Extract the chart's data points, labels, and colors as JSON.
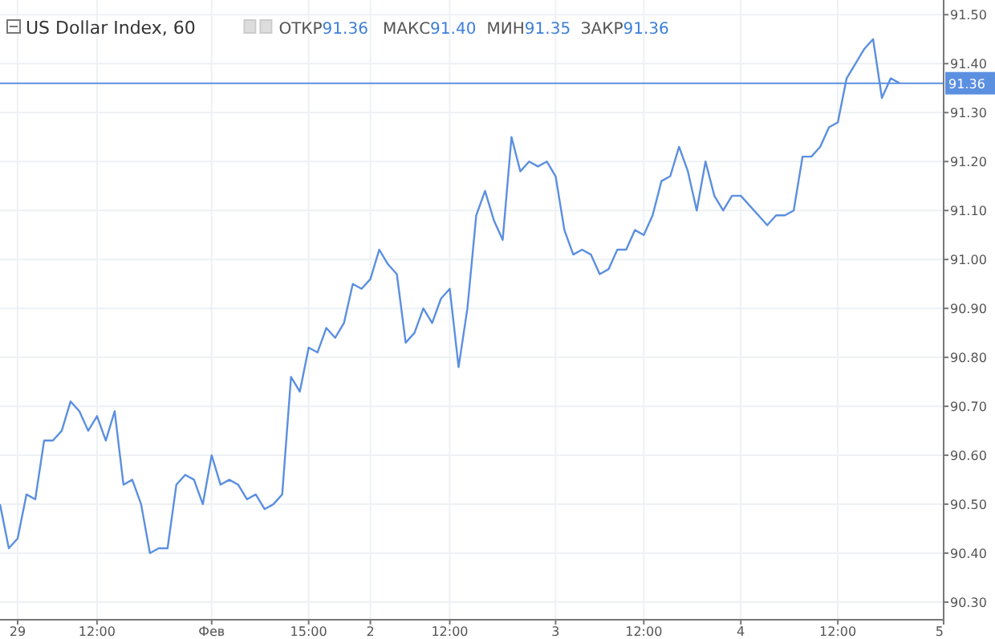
{
  "chart_data": {
    "type": "line",
    "title": "US Dollar Index, 60",
    "annotations": [
      "ОТКР91.36",
      "МАКС91.40",
      "МИН91.35",
      "ЗАКР91.36"
    ],
    "categories": [
      null,
      null,
      "29",
      null,
      null,
      null,
      null,
      null,
      null,
      null,
      null,
      "12:00",
      null,
      null,
      null,
      null,
      null,
      null,
      null,
      null,
      null,
      null,
      null,
      null,
      "Фев",
      null,
      null,
      null,
      null,
      null,
      null,
      null,
      null,
      null,
      null,
      "15:00",
      null,
      null,
      null,
      null,
      null,
      null,
      "2",
      null,
      null,
      null,
      null,
      null,
      null,
      null,
      null,
      "12:00",
      null,
      null,
      null,
      null,
      null,
      null,
      null,
      null,
      null,
      null,
      null,
      "3",
      null,
      null,
      null,
      null,
      null,
      null,
      null,
      null,
      null,
      "12:00",
      null,
      null,
      null,
      null,
      null,
      null,
      null,
      null,
      null,
      null,
      "4",
      null,
      null,
      null,
      null,
      null,
      null,
      null,
      null,
      null,
      null,
      "12:00",
      null,
      null,
      null,
      null,
      null,
      null,
      null,
      null,
      null,
      null,
      null,
      "5"
    ],
    "series": [
      {
        "color": "#5b8fe0",
        "values": [
          90.5,
          90.41,
          90.43,
          90.52,
          90.51,
          90.63,
          90.63,
          90.65,
          90.71,
          90.69,
          90.65,
          90.68,
          90.63,
          90.69,
          90.54,
          90.55,
          90.5,
          90.4,
          90.41,
          90.41,
          90.54,
          90.56,
          90.55,
          90.5,
          90.6,
          90.54,
          90.55,
          90.54,
          90.51,
          90.52,
          90.49,
          90.5,
          90.52,
          90.76,
          90.73,
          90.82,
          90.81,
          90.86,
          90.84,
          90.87,
          90.95,
          90.94,
          90.96,
          91.02,
          90.99,
          90.97,
          90.83,
          90.85,
          90.9,
          90.87,
          90.92,
          90.94,
          90.78,
          90.9,
          91.09,
          91.14,
          91.08,
          91.04,
          91.25,
          91.18,
          91.2,
          91.19,
          91.2,
          91.17,
          91.06,
          91.01,
          91.02,
          91.01,
          90.97,
          90.98,
          91.02,
          91.02,
          91.06,
          91.05,
          91.09,
          91.16,
          91.17,
          91.23,
          91.18,
          91.1,
          91.2,
          91.13,
          91.1,
          91.13,
          91.13,
          91.11,
          91.09,
          91.07,
          91.09,
          91.09,
          91.1,
          91.21,
          91.21,
          91.23,
          91.27,
          91.28,
          91.37,
          91.4,
          91.43,
          91.45,
          91.33,
          91.37,
          91.36,
          null,
          null,
          null,
          null,
          null
        ]
      }
    ],
    "ylim": [
      90.264,
      91.53
    ],
    "yticks": [
      {
        "value": 90.3,
        "label": "90.30"
      },
      {
        "value": 90.4,
        "label": "90.40"
      },
      {
        "value": 90.5,
        "label": "90.50"
      },
      {
        "value": 90.6,
        "label": "90.60"
      },
      {
        "value": 90.7,
        "label": "90.70"
      },
      {
        "value": 90.8,
        "label": "90.80"
      },
      {
        "value": 90.9,
        "label": "90.90"
      },
      {
        "value": 91.0,
        "label": "91.00"
      },
      {
        "value": 91.1,
        "label": "91.10"
      },
      {
        "value": 91.2,
        "label": "91.20"
      },
      {
        "value": 91.3,
        "label": "91.30"
      },
      {
        "value": 91.4,
        "label": "91.40"
      },
      {
        "value": 91.5,
        "label": "91.50"
      }
    ],
    "ref_lines": [
      {
        "axis": "y",
        "value": 91.36,
        "label": "91.36",
        "color": "#5b8fe0"
      }
    ],
    "grid": true,
    "marker": "none",
    "line_style": "solid"
  }
}
